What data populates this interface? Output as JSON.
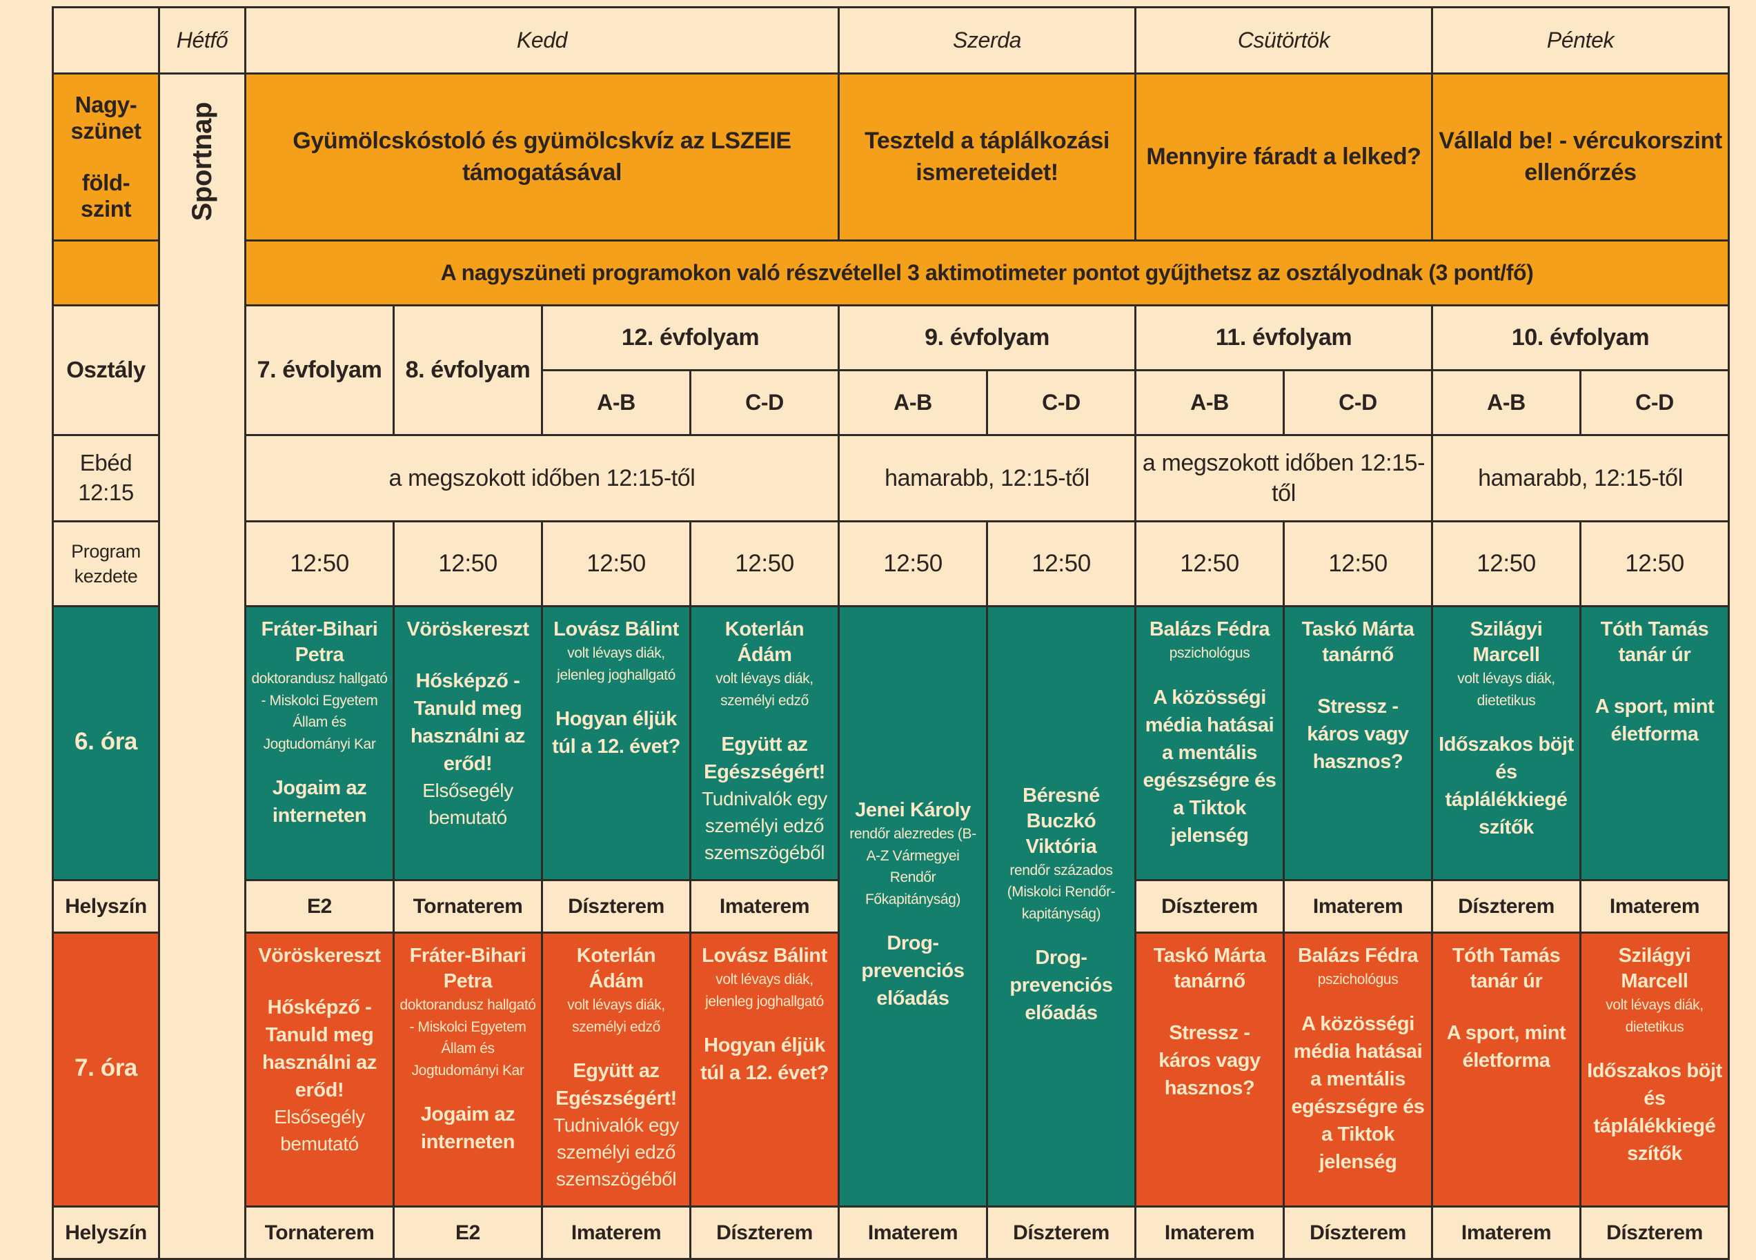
{
  "days": {
    "mon": "Hétfő",
    "tue": "Kedd",
    "wed": "Szerda",
    "thu": "Csütörtök",
    "fri": "Péntek"
  },
  "labels": {
    "break": "Nagy-\nszünet\n\nföld-\nszint",
    "class": "Osztály",
    "lunch": "Ebéd\n12:15",
    "start": "Program\nkezdete",
    "hour6": "6. óra",
    "hour7": "7. óra",
    "place": "Helyszín",
    "monday_event": "Sportnap"
  },
  "break_programs": {
    "tue": "Gyümölcskóstoló és gyümölcskvíz az LSZEIE támogatásával",
    "wed": "Teszteld a táplálkozási ismereteidet!",
    "thu": "Mennyire fáradt a lelked?",
    "fri": "Vállald be! - vércukorszint ellenőrzés"
  },
  "break_note": "A nagyszüneti programokon való részvétellel 3 aktimotimeter pontot gyűjthetsz az osztályodnak (3 pont/fő)",
  "grades": {
    "g7": "7. évfolyam",
    "g8": "8. évfolyam",
    "g12": "12. évfolyam",
    "g9": "9. évfolyam",
    "g11": "11. évfolyam",
    "g10": "10. évfolyam"
  },
  "groups": [
    "A-B",
    "C-D",
    "A-B",
    "C-D",
    "A-B",
    "C-D",
    "A-B",
    "C-D"
  ],
  "lunch": {
    "tue": "a megszokott időben 12:15-től",
    "wed": "hamarabb, 12:15-től",
    "thu": "a megszokott időben 12:15-től",
    "fri": "hamarabb, 12:15-től"
  },
  "start_times": [
    "12:50",
    "12:50",
    "12:50",
    "12:50",
    "12:50",
    "12:50",
    "12:50",
    "12:50",
    "12:50",
    "12:50"
  ],
  "hour6": [
    {
      "name": "Fráter-Bihari Petra",
      "role": "doktorandusz hallgató - Miskolci Egyetem Állam és Jogtudományi Kar",
      "title": "Jogaim az interneten",
      "desc": ""
    },
    {
      "name": "Vöröskereszt",
      "role": "",
      "title": "Hősképző - Tanuld meg használni az erőd!",
      "desc": "Elsősegély bemutató"
    },
    {
      "name": "Lovász Bálint",
      "role": "volt lévays diák, jelenleg joghallgató",
      "title": "Hogyan éljük túl a 12. évet?",
      "desc": ""
    },
    {
      "name": "Koterlán Ádám",
      "role": "volt lévays diák, személyi edző",
      "title": "Együtt az Egészségért!",
      "desc": "Tudnivalók egy személyi edző szemszögéből"
    },
    {
      "name": "Jenei Károly",
      "role": "rendőr alezredes (B-A-Z Vármegyei Rendőr Főkapitányság)",
      "title": "Drog-prevenciós előadás",
      "desc": ""
    },
    {
      "name": "Béresné Buczkó Viktória",
      "role": "rendőr százados (Miskolci Rendőr-kapitányság)",
      "title": "Drog-prevenciós előadás",
      "desc": ""
    },
    {
      "name": "Balázs Fédra",
      "role": "pszichológus",
      "title": "A közösségi média hatásai a mentális egészségre és a Tiktok jelenség",
      "desc": ""
    },
    {
      "name": "Taskó Márta tanárnő",
      "role": "",
      "title": "Stressz - káros vagy hasznos?",
      "desc": ""
    },
    {
      "name": "Szilágyi Marcell",
      "role": "volt lévays diák, dietetikus",
      "title": "Időszakos böjt és táplálékkiegé szítők",
      "desc": ""
    },
    {
      "name": "Tóth Tamás tanár úr",
      "role": "",
      "title": "A sport, mint életforma",
      "desc": ""
    }
  ],
  "place6": [
    "E2",
    "Tornaterem",
    "Díszterem",
    "Imaterem",
    "",
    "",
    "Díszterem",
    "Imaterem",
    "Díszterem",
    "Imaterem"
  ],
  "hour7": [
    {
      "name": "Vöröskereszt",
      "role": "",
      "title": "Hősképző - Tanuld meg használni az erőd!",
      "desc": "Elsősegély bemutató"
    },
    {
      "name": "Fráter-Bihari Petra",
      "role": "doktorandusz hallgató - Miskolci Egyetem Állam és Jogtudományi Kar",
      "title": "Jogaim az interneten",
      "desc": ""
    },
    {
      "name": "Koterlán Ádám",
      "role": "volt lévays diák, személyi edző",
      "title": "Együtt az Egészségért!",
      "desc": "Tudnivalók egy személyi edző szemszögéből"
    },
    {
      "name": "Lovász Bálint",
      "role": "volt lévays diák, jelenleg joghallgató",
      "title": "Hogyan éljük túl a 12. évet?",
      "desc": ""
    },
    null,
    null,
    {
      "name": "Taskó Márta tanárnő",
      "role": "",
      "title": "Stressz - káros vagy hasznos?",
      "desc": ""
    },
    {
      "name": "Balázs Fédra",
      "role": "pszichológus",
      "title": "A közösségi média hatásai a mentális egészségre és a Tiktok jelenség",
      "desc": ""
    },
    {
      "name": "Tóth Tamás tanár úr",
      "role": "",
      "title": "A sport, mint életforma",
      "desc": ""
    },
    {
      "name": "Szilágyi Marcell",
      "role": "volt lévays diák, dietetikus",
      "title": "Időszakos böjt és táplálékkiegé szítők",
      "desc": ""
    }
  ],
  "place7": [
    "Tornaterem",
    "E2",
    "Imaterem",
    "Díszterem",
    "Imaterem",
    "Díszterem",
    "Imaterem",
    "Díszterem",
    "Imaterem",
    "Díszterem"
  ],
  "colors": {
    "bg": "#fce8c7",
    "orange": "#f4a01b",
    "green": "#137f6c",
    "red": "#e55223",
    "line": "#2e2a26"
  }
}
